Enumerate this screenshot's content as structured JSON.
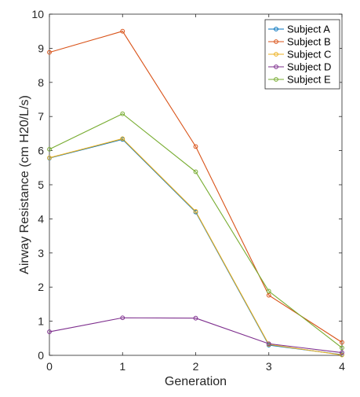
{
  "chart_data": {
    "type": "line",
    "title": "",
    "xlabel": "Generation",
    "ylabel": "Airway Resistance (cm H20/L/s)",
    "xlim": [
      0,
      4
    ],
    "ylim": [
      0,
      10
    ],
    "xticks": [
      0,
      1,
      2,
      3,
      4
    ],
    "yticks": [
      0,
      1,
      2,
      3,
      4,
      5,
      6,
      7,
      8,
      9,
      10
    ],
    "grid": false,
    "legend_position": "top-right",
    "x": [
      0,
      1,
      2,
      3,
      4
    ],
    "series": [
      {
        "name": "Subject A",
        "color": "#0072BD",
        "values": [
          5.78,
          6.33,
          4.2,
          0.3,
          0.02
        ]
      },
      {
        "name": "Subject B",
        "color": "#D95319",
        "values": [
          8.88,
          9.5,
          6.12,
          1.76,
          0.38
        ]
      },
      {
        "name": "Subject C",
        "color": "#EDB120",
        "values": [
          5.79,
          6.35,
          4.22,
          0.32,
          0.01
        ]
      },
      {
        "name": "Subject D",
        "color": "#7E2F8E",
        "values": [
          0.69,
          1.1,
          1.09,
          0.34,
          0.08
        ]
      },
      {
        "name": "Subject E",
        "color": "#77AC30",
        "values": [
          6.04,
          7.08,
          5.38,
          1.88,
          0.22
        ]
      }
    ]
  }
}
